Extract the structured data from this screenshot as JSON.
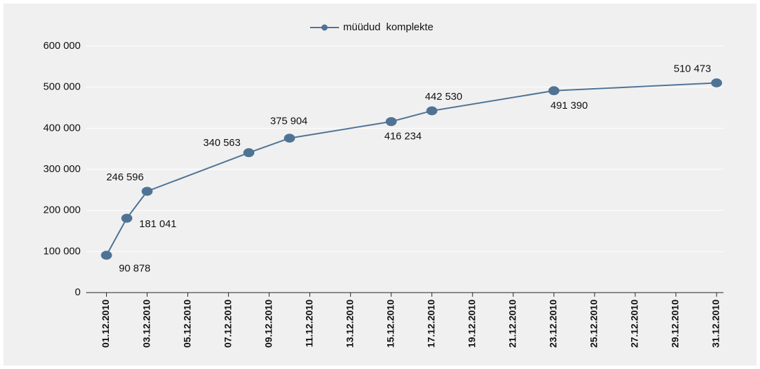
{
  "chart_data": {
    "type": "line",
    "x": [
      "01.12.2010",
      "02.12.2010",
      "03.12.2010",
      "08.12.2010",
      "10.12.2010",
      "15.12.2010",
      "17.12.2010",
      "23.12.2010",
      "31.12.2010"
    ],
    "series": [
      {
        "name": "müüdud  komplekte",
        "color": "#4f7395",
        "values": [
          90878,
          181041,
          246596,
          340563,
          375904,
          416234,
          442530,
          491390,
          510473
        ],
        "value_labels": [
          "90 878",
          "181 041",
          "246 596",
          "340 563",
          "375 904",
          "416 234",
          "442 530",
          "491 390",
          "510 473"
        ]
      }
    ],
    "xticks": [
      "01.12.2010",
      "03.12.2010",
      "05.12.2010",
      "07.12.2010",
      "09.12.2010",
      "11.12.2010",
      "13.12.2010",
      "15.12.2010",
      "17.12.2010",
      "19.12.2010",
      "21.12.2010",
      "23.12.2010",
      "25.12.2010",
      "27.12.2010",
      "29.12.2010",
      "31.12.2010"
    ],
    "ylim": [
      0,
      600000
    ],
    "yticks": [
      0,
      {
        "value": 100000,
        "label": "100 000"
      },
      {
        "value": 200000,
        "label": "200 000"
      },
      {
        "value": 300000,
        "label": "300 000"
      },
      {
        "value": 400000,
        "label": "400 000"
      },
      {
        "value": 500000,
        "label": "500 000"
      },
      {
        "value": 600000,
        "label": "600 000"
      }
    ],
    "grid": true,
    "legend": "top"
  }
}
